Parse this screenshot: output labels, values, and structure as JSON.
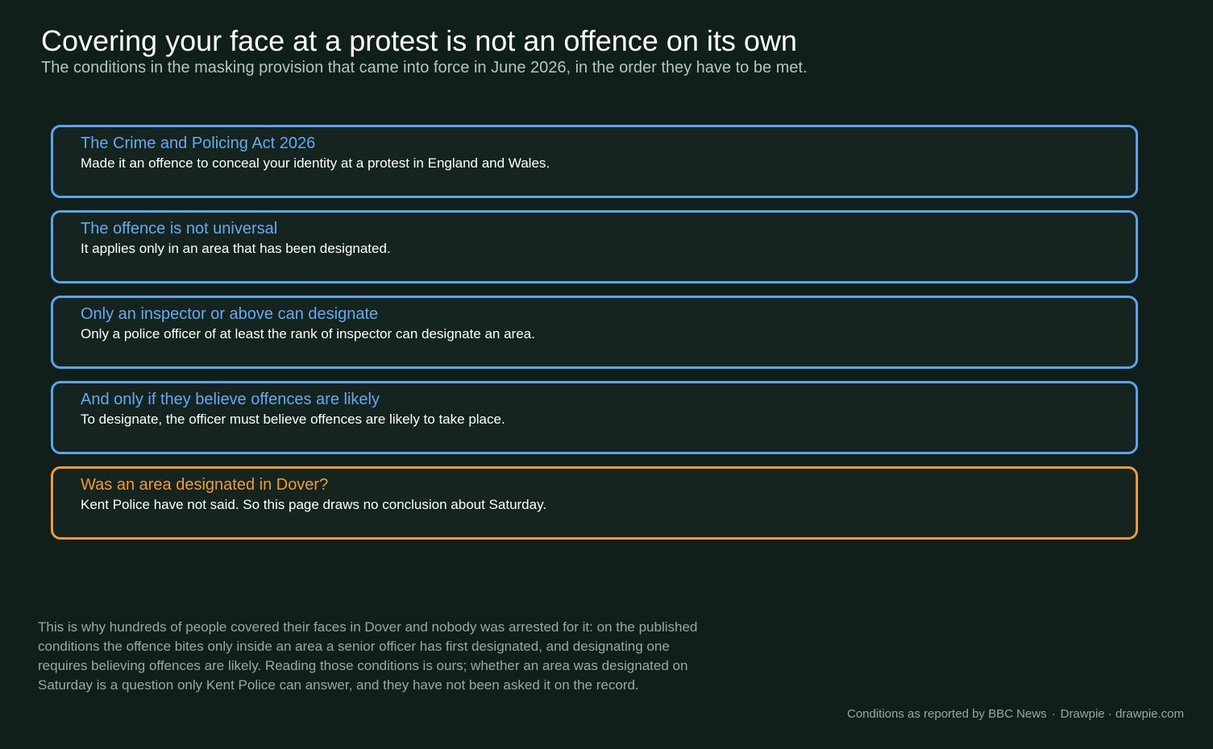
{
  "header": {
    "title": "Covering your face at a protest is not an offence on its own",
    "subtitle": "The conditions in the masking provision that came into force in June 2026, in the order they have to be met."
  },
  "steps": [
    {
      "title": "The Crime and Policing Act 2026",
      "body": "Made it an offence to conceal your identity at a protest in England and Wales."
    },
    {
      "title": "The offence is not universal",
      "body": "It applies only in an area that has been designated."
    },
    {
      "title": "Only an inspector or above can designate",
      "body": "Only a police officer of at least the rank of inspector can designate an area."
    },
    {
      "title": "And only if they believe offences are likely",
      "body": "To designate, the officer must believe offences are likely to take place."
    },
    {
      "title": "Was an area designated in Dover?",
      "body": "Kent Police have not said. So this page draws no conclusion about Saturday."
    }
  ],
  "footnote": "This is why hundreds of people covered their faces in Dover and nobody was arrested for it: on the published conditions the offence bites only inside an area a senior officer has first designated, and designating one requires believing offences are likely. Reading those conditions is ours; whether an area was designated on Saturday is a question only Kent Police can answer, and they have not been asked it on the record.",
  "source": {
    "attribution": "Conditions as reported by BBC News",
    "separator": "·",
    "credit": "Drawpie · drawpie.com"
  },
  "colors": {
    "background": "#111f1a",
    "condition_border": "#5ca4ee",
    "open_question_border": "#ee9a3a"
  }
}
